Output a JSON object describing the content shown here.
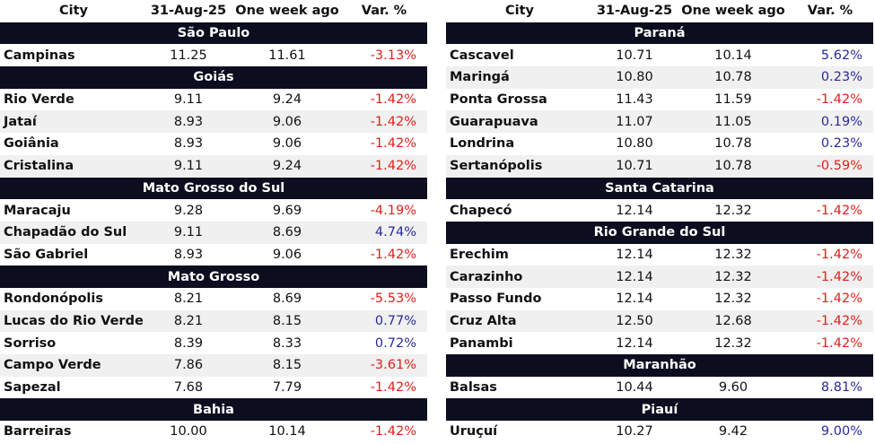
{
  "columns": {
    "city": "City",
    "date": "31-Aug-25",
    "week": "One week ago",
    "var": "Var. %"
  },
  "colors": {
    "group_bg": "#0c0d1f",
    "negative": "#e0201b",
    "positive": "#2a2a9a",
    "row_shade": "#f0f0f0"
  },
  "left": [
    {
      "state": "São Paulo",
      "rows": [
        {
          "city": "Campinas",
          "date": "11.25",
          "week": "11.61",
          "var": "-3.13%"
        }
      ]
    },
    {
      "state": "Goiás",
      "rows": [
        {
          "city": "Rio Verde",
          "date": "9.11",
          "week": "9.24",
          "var": "-1.42%"
        },
        {
          "city": "Jataí",
          "date": "8.93",
          "week": "9.06",
          "var": "-1.42%"
        },
        {
          "city": "Goiânia",
          "date": "8.93",
          "week": "9.06",
          "var": "-1.42%"
        },
        {
          "city": "Cristalina",
          "date": "9.11",
          "week": "9.24",
          "var": "-1.42%"
        }
      ]
    },
    {
      "state": "Mato Grosso do Sul",
      "rows": [
        {
          "city": "Maracaju",
          "date": "9.28",
          "week": "9.69",
          "var": "-4.19%"
        },
        {
          "city": "Chapadão do Sul",
          "date": "9.11",
          "week": "8.69",
          "var": "4.74%"
        },
        {
          "city": "São Gabriel",
          "date": "8.93",
          "week": "9.06",
          "var": "-1.42%"
        }
      ]
    },
    {
      "state": "Mato Grosso",
      "rows": [
        {
          "city": "Rondonópolis",
          "date": "8.21",
          "week": "8.69",
          "var": "-5.53%"
        },
        {
          "city": "Lucas do Rio Verde",
          "date": "8.21",
          "week": "8.15",
          "var": "0.77%"
        },
        {
          "city": "Sorriso",
          "date": "8.39",
          "week": "8.33",
          "var": "0.72%"
        },
        {
          "city": "Campo Verde",
          "date": "7.86",
          "week": "8.15",
          "var": "-3.61%"
        },
        {
          "city": "Sapezal",
          "date": "7.68",
          "week": "7.79",
          "var": "-1.42%"
        }
      ]
    },
    {
      "state": "Bahia",
      "rows": [
        {
          "city": "Barreiras",
          "date": "10.00",
          "week": "10.14",
          "var": "-1.42%"
        }
      ]
    }
  ],
  "right": [
    {
      "state": "Paraná",
      "rows": [
        {
          "city": "Cascavel",
          "date": "10.71",
          "week": "10.14",
          "var": "5.62%"
        },
        {
          "city": "Maringá",
          "date": "10.80",
          "week": "10.78",
          "var": "0.23%"
        },
        {
          "city": "Ponta Grossa",
          "date": "11.43",
          "week": "11.59",
          "var": "-1.42%"
        },
        {
          "city": "Guarapuava",
          "date": "11.07",
          "week": "11.05",
          "var": "0.19%"
        },
        {
          "city": "Londrina",
          "date": "10.80",
          "week": "10.78",
          "var": "0.23%"
        },
        {
          "city": "Sertanópolis",
          "date": "10.71",
          "week": "10.78",
          "var": "-0.59%"
        }
      ]
    },
    {
      "state": "Santa Catarina",
      "rows": [
        {
          "city": "Chapecó",
          "date": "12.14",
          "week": "12.32",
          "var": "-1.42%"
        }
      ]
    },
    {
      "state": "Rio Grande do Sul",
      "rows": [
        {
          "city": "Erechim",
          "date": "12.14",
          "week": "12.32",
          "var": "-1.42%"
        },
        {
          "city": "Carazinho",
          "date": "12.14",
          "week": "12.32",
          "var": "-1.42%"
        },
        {
          "city": "Passo Fundo",
          "date": "12.14",
          "week": "12.32",
          "var": "-1.42%"
        },
        {
          "city": "Cruz Alta",
          "date": "12.50",
          "week": "12.68",
          "var": "-1.42%"
        },
        {
          "city": "Panambi",
          "date": "12.14",
          "week": "12.32",
          "var": "-1.42%"
        }
      ]
    },
    {
      "state": "Maranhão",
      "rows": [
        {
          "city": "Balsas",
          "date": "10.44",
          "week": "9.60",
          "var": "8.81%"
        }
      ]
    },
    {
      "state": "Piauí",
      "rows": [
        {
          "city": "Uruçuí",
          "date": "10.27",
          "week": "9.42",
          "var": "9.00%"
        }
      ]
    }
  ]
}
